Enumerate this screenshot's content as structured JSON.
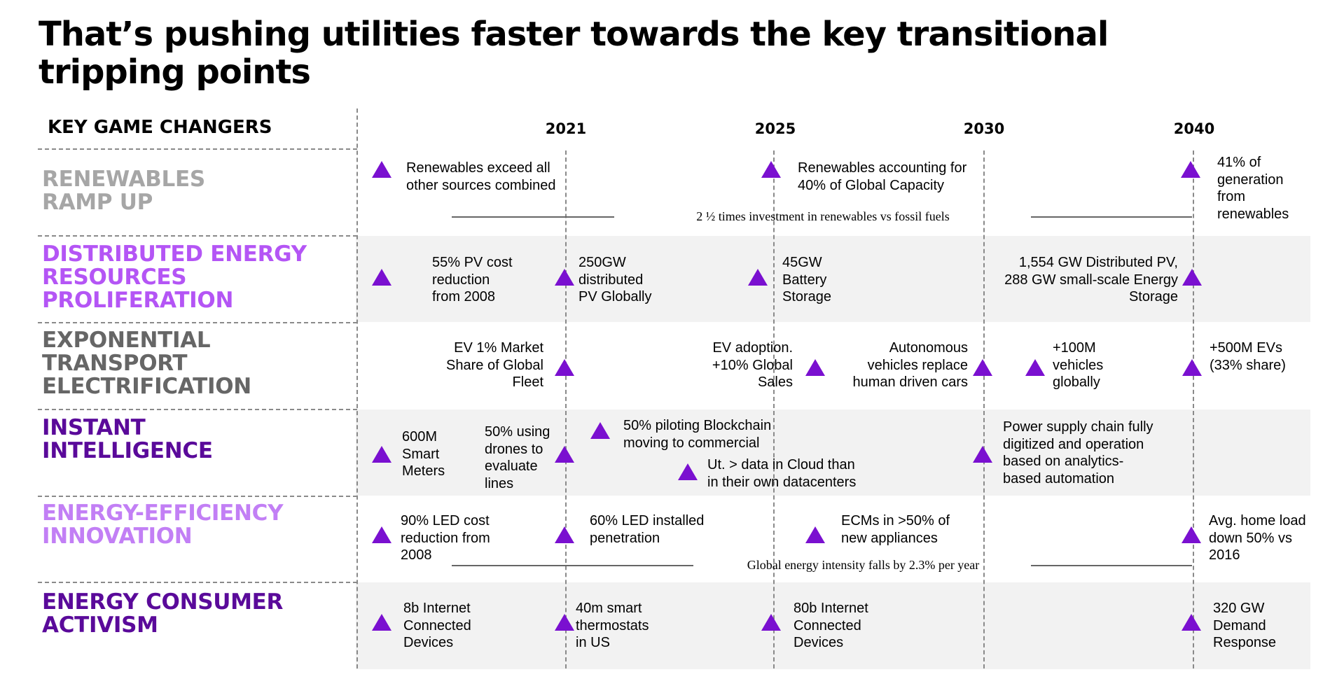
{
  "title_line1": "That’s pushing utilities faster towards the  key transitional",
  "title_line2": "tripping points",
  "header": "KEY GAME CHANGERS",
  "years": [
    "2021",
    "2025",
    "2030",
    "2040"
  ],
  "categories": [
    {
      "line1": "RENEWABLES",
      "line2": "RAMP UP",
      "color": "#a6a6a6"
    },
    {
      "line1": "DISTRIBUTED ENERGY",
      "line2": "RESOURCES",
      "line3": "PROLIFERATION",
      "color": "#b455f5"
    },
    {
      "line1": "EXPONENTIAL",
      "line2": "TRANSPORT",
      "line3": "ELECTRIFICATION",
      "color": "#666666"
    },
    {
      "line1": "INSTANT",
      "line2": "INTELLIGENCE",
      "color": "#5a0a9a"
    },
    {
      "line1": "ENERGY-EFFICIENCY",
      "line2": "INNOVATION",
      "color": "#c27ff5"
    },
    {
      "line1": "ENERGY CONSUMER",
      "line2": "ACTIVISM",
      "color": "#5a0a9a"
    }
  ],
  "renewables": {
    "a": [
      "Renewables exceed all",
      "other sources combined"
    ],
    "b": [
      "Renewables accounting for",
      "40% of Global Capacity"
    ],
    "c": [
      "41% of",
      "generation",
      "from",
      "renewables"
    ],
    "line_text": "2 ½ times investment in renewables vs fossil fuels"
  },
  "der": {
    "a": [
      "55% PV cost",
      "reduction",
      "from 2008"
    ],
    "b": [
      "250GW",
      "distributed",
      "PV Globally"
    ],
    "c": [
      "45GW",
      "Battery",
      "Storage"
    ],
    "d": [
      "1,554 GW Distributed PV,",
      "288 GW small-scale Energy",
      "Storage"
    ]
  },
  "transport": {
    "a": [
      "EV 1% Market",
      "Share of Global",
      "Fleet"
    ],
    "b": [
      "EV adoption.",
      "+10% Global",
      "Sales"
    ],
    "c": [
      "Autonomous",
      "vehicles replace",
      "human driven cars"
    ],
    "d": [
      "+100M",
      "vehicles",
      "globally"
    ],
    "e": [
      "+500M EVs",
      "(33% share)"
    ]
  },
  "intelligence": {
    "a": [
      "600M",
      "Smart",
      "Meters"
    ],
    "b": [
      "50% using",
      "drones to",
      "evaluate",
      "lines"
    ],
    "c": [
      "50% piloting Blockchain",
      "moving to commercial"
    ],
    "d": [
      "Ut. > data in Cloud than",
      "in their own datacenters"
    ],
    "e": [
      "Power supply chain fully",
      "digitized and operation",
      "based on analytics-",
      "based automation"
    ]
  },
  "efficiency": {
    "a": [
      "90% LED cost",
      "reduction from",
      "2008"
    ],
    "b": [
      "60% LED installed",
      "penetration"
    ],
    "c": [
      "ECMs in >50% of",
      "new appliances"
    ],
    "d": [
      "Avg. home load",
      "down 50% vs",
      "2016"
    ],
    "line_text": "Global energy intensity falls by 2.3% per year"
  },
  "activism": {
    "a": [
      "8b Internet",
      "Connected",
      "Devices"
    ],
    "b": [
      "40m smart",
      "thermostats",
      "in US"
    ],
    "c": [
      "80b Internet",
      "Connected",
      "Devices"
    ],
    "d": [
      "320 GW",
      "Demand",
      "Response"
    ]
  },
  "colors": {
    "accent": "#7a10d0",
    "band": "#f2f2f2",
    "dashes": "#8a8a8a"
  }
}
